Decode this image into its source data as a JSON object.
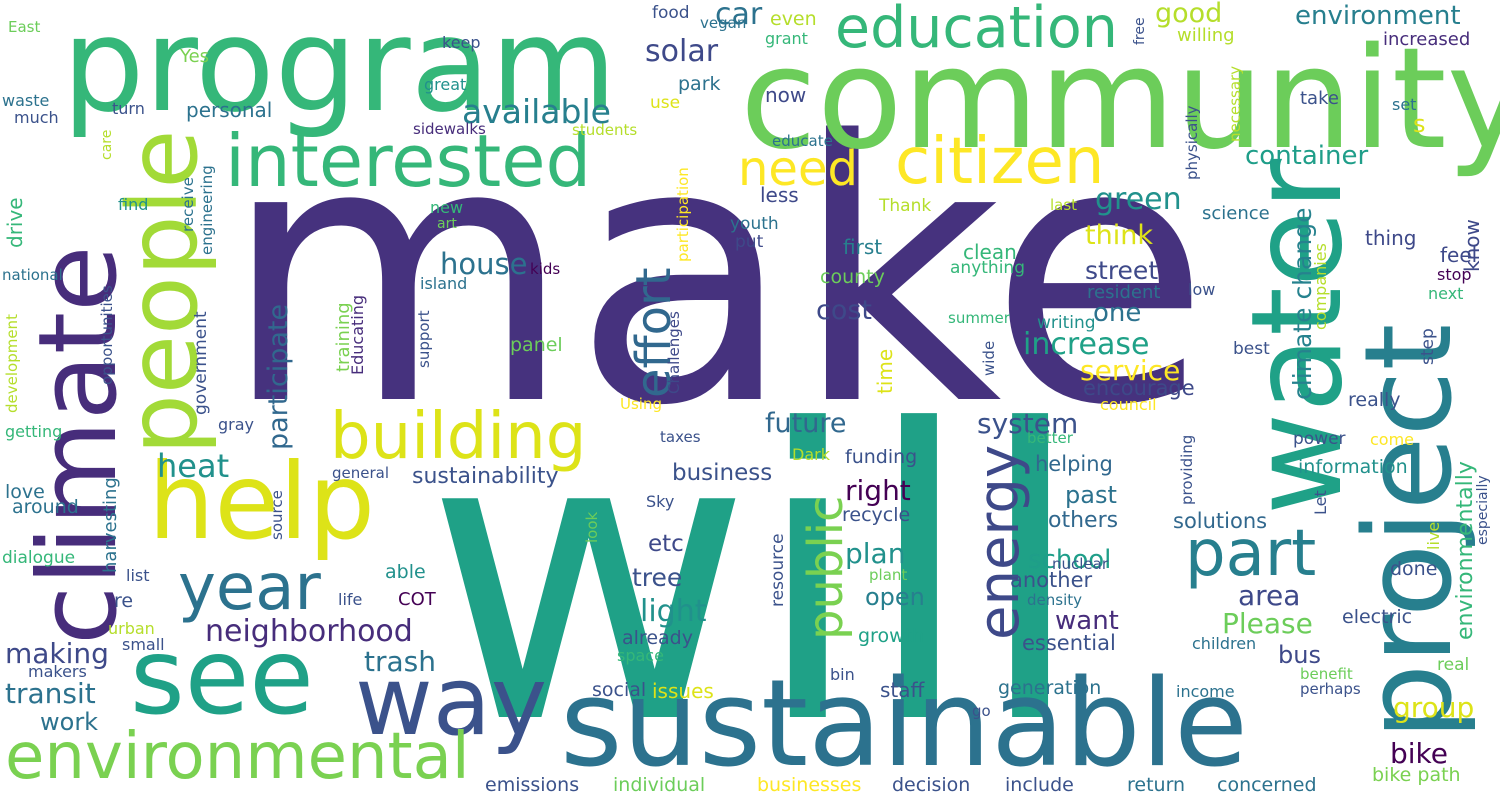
{
  "words": [
    {
      "text": "make",
      "color": "#46327e"
    },
    {
      "text": "will",
      "color": "#1fa187"
    },
    {
      "text": "community",
      "color": "#6ccd5a"
    },
    {
      "text": "program",
      "color": "#35b779"
    },
    {
      "text": "project",
      "color": "#277f8e"
    },
    {
      "text": "water",
      "color": "#1fa187"
    },
    {
      "text": "sustainable",
      "color": "#2c728e"
    },
    {
      "text": "climate",
      "color": "#472d7b"
    },
    {
      "text": "people",
      "color": "#a2da37"
    },
    {
      "text": "help",
      "color": "#dde318"
    },
    {
      "text": "see",
      "color": "#1fa187"
    },
    {
      "text": "way",
      "color": "#3b528b"
    },
    {
      "text": "environmental",
      "color": "#7ad151"
    },
    {
      "text": "interested",
      "color": "#35b779"
    },
    {
      "text": "education",
      "color": "#35b779"
    },
    {
      "text": "citizen",
      "color": "#fde725"
    },
    {
      "text": "building",
      "color": "#dde318"
    },
    {
      "text": "year",
      "color": "#2c728e"
    },
    {
      "text": "part",
      "color": "#277f8e"
    },
    {
      "text": "energy",
      "color": "#3e4989"
    },
    {
      "text": "public",
      "color": "#7ad151"
    },
    {
      "text": "effort",
      "color": "#31688e"
    },
    {
      "text": "need",
      "color": "#fde725"
    },
    {
      "text": "available",
      "color": "#277f8e"
    },
    {
      "text": "solar",
      "color": "#3e4989"
    },
    {
      "text": "car",
      "color": "#2c728e"
    },
    {
      "text": "good",
      "color": "#b5de2b"
    },
    {
      "text": "environment",
      "color": "#277f8e"
    },
    {
      "text": "container",
      "color": "#1f9e89"
    },
    {
      "text": "climate change",
      "color": "#26828e"
    },
    {
      "text": "green",
      "color": "#21918c"
    },
    {
      "text": "think",
      "color": "#dde318"
    },
    {
      "text": "street",
      "color": "#3e4989"
    },
    {
      "text": "one",
      "color": "#2c728e"
    },
    {
      "text": "increase",
      "color": "#1fa187"
    },
    {
      "text": "service",
      "color": "#fde725"
    },
    {
      "text": "encourage",
      "color": "#3e4989"
    },
    {
      "text": "house",
      "color": "#2c728e"
    },
    {
      "text": "heat",
      "color": "#21918c"
    },
    {
      "text": "cost",
      "color": "#3e4989"
    },
    {
      "text": "participate",
      "color": "#31688e"
    },
    {
      "text": "neighborhood",
      "color": "#472d7b"
    },
    {
      "text": "system",
      "color": "#3b528b"
    },
    {
      "text": "future",
      "color": "#31688e"
    },
    {
      "text": "business",
      "color": "#3b528b"
    },
    {
      "text": "sustainability",
      "color": "#3b528b"
    },
    {
      "text": "right",
      "color": "#440154"
    },
    {
      "text": "plan",
      "color": "#21918c"
    },
    {
      "text": "school",
      "color": "#1f9e89"
    },
    {
      "text": "tree",
      "color": "#3b528b"
    },
    {
      "text": "light",
      "color": "#21918c"
    },
    {
      "text": "open",
      "color": "#277f8e"
    },
    {
      "text": "want",
      "color": "#472d7b"
    },
    {
      "text": "area",
      "color": "#3e4989"
    },
    {
      "text": "Please",
      "color": "#6ccd5a"
    },
    {
      "text": "trash",
      "color": "#2c728e"
    },
    {
      "text": "making",
      "color": "#3e4989"
    },
    {
      "text": "transit",
      "color": "#2c728e"
    },
    {
      "text": "work",
      "color": "#2c728e"
    },
    {
      "text": "bike",
      "color": "#440154"
    },
    {
      "text": "group",
      "color": "#dde318"
    },
    {
      "text": "bus",
      "color": "#3e4989"
    },
    {
      "text": "etc",
      "color": "#3e4989"
    },
    {
      "text": "past",
      "color": "#2c728e"
    },
    {
      "text": "others",
      "color": "#31688e"
    },
    {
      "text": "helping",
      "color": "#31688e"
    },
    {
      "text": "solutions",
      "color": "#31688e"
    },
    {
      "text": "another",
      "color": "#3b528b"
    },
    {
      "text": "essential",
      "color": "#3b528b"
    },
    {
      "text": "now",
      "color": "#3e4989"
    },
    {
      "text": "know",
      "color": "#3e4989"
    },
    {
      "text": "feel",
      "color": "#3e4989"
    },
    {
      "text": "thing",
      "color": "#3e4989"
    },
    {
      "text": "less",
      "color": "#3e4989"
    },
    {
      "text": "first",
      "color": "#277f8e"
    },
    {
      "text": "county",
      "color": "#6ccd5a"
    },
    {
      "text": "panel",
      "color": "#6ccd5a"
    },
    {
      "text": "time",
      "color": "#dde318"
    },
    {
      "text": "clean",
      "color": "#35b779"
    },
    {
      "text": "anything",
      "color": "#35b779"
    },
    {
      "text": "resident",
      "color": "#2c728e"
    },
    {
      "text": "science",
      "color": "#2c728e"
    },
    {
      "text": "environmentally",
      "color": "#35b779"
    },
    {
      "text": "funding",
      "color": "#3b528b"
    },
    {
      "text": "recycle",
      "color": "#3b528b"
    },
    {
      "text": "growth",
      "color": "#1fa187"
    },
    {
      "text": "staff",
      "color": "#3b528b"
    },
    {
      "text": "generation",
      "color": "#2c728e"
    },
    {
      "text": "information",
      "color": "#21918c"
    },
    {
      "text": "issues",
      "color": "#dde318"
    },
    {
      "text": "social",
      "color": "#3b528b"
    },
    {
      "text": "already",
      "color": "#3b528b"
    },
    {
      "text": "electric",
      "color": "#3b528b"
    },
    {
      "text": "done",
      "color": "#3b528b"
    },
    {
      "text": "really",
      "color": "#3b528b"
    },
    {
      "text": "power",
      "color": "#3b528b"
    },
    {
      "text": "emissions",
      "color": "#3b528b"
    },
    {
      "text": "individual",
      "color": "#6ccd5a"
    },
    {
      "text": "businesses",
      "color": "#fde725"
    },
    {
      "text": "decision",
      "color": "#3b528b"
    },
    {
      "text": "include",
      "color": "#3b528b"
    },
    {
      "text": "return",
      "color": "#2c728e"
    },
    {
      "text": "concerned",
      "color": "#2c728e"
    },
    {
      "text": "bike path",
      "color": "#7ad151"
    },
    {
      "text": "personal",
      "color": "#2c728e"
    },
    {
      "text": "drive",
      "color": "#35b779"
    },
    {
      "text": "government",
      "color": "#3b528b"
    },
    {
      "text": "training",
      "color": "#7ad151"
    },
    {
      "text": "Educating",
      "color": "#472d7b"
    },
    {
      "text": "harvesting",
      "color": "#2c728e"
    },
    {
      "text": "dialogue",
      "color": "#35b779"
    },
    {
      "text": "love",
      "color": "#2c728e"
    },
    {
      "text": "around",
      "color": "#2c728e"
    },
    {
      "text": "getting",
      "color": "#35b779"
    },
    {
      "text": "development",
      "color": "#b5de2b"
    },
    {
      "text": "opportunities",
      "color": "#3b528b"
    },
    {
      "text": "national",
      "color": "#2c728e"
    },
    {
      "text": "engineering",
      "color": "#2c728e"
    },
    {
      "text": "receive",
      "color": "#2c728e"
    },
    {
      "text": "support",
      "color": "#3b528b"
    },
    {
      "text": "island",
      "color": "#2c728e"
    },
    {
      "text": "kids",
      "color": "#440154"
    },
    {
      "text": "Challenges",
      "color": "#3e4989"
    },
    {
      "text": "participation",
      "color": "#fde725"
    },
    {
      "text": "new",
      "color": "#35b779"
    },
    {
      "text": "art",
      "color": "#6ccd5a"
    },
    {
      "text": "Thank",
      "color": "#b5de2b"
    },
    {
      "text": "last",
      "color": "#b5de2b"
    },
    {
      "text": "youth",
      "color": "#2c728e"
    },
    {
      "text": "put",
      "color": "#3e4989"
    },
    {
      "text": "educate",
      "color": "#2c728e"
    },
    {
      "text": "students",
      "color": "#b5de2b"
    },
    {
      "text": "sidewalks",
      "color": "#472d7b"
    },
    {
      "text": "great",
      "color": "#21918c"
    },
    {
      "text": "keep",
      "color": "#3b528b"
    },
    {
      "text": "food",
      "color": "#3b528b"
    },
    {
      "text": "vegan",
      "color": "#2c728e"
    },
    {
      "text": "even",
      "color": "#b5de2b"
    },
    {
      "text": "grant",
      "color": "#35b779"
    },
    {
      "text": "park",
      "color": "#2c728e"
    },
    {
      "text": "use",
      "color": "#dde318"
    },
    {
      "text": "East",
      "color": "#6ccd5a"
    },
    {
      "text": "Yes",
      "color": "#7ad151"
    },
    {
      "text": "waste",
      "color": "#2c728e"
    },
    {
      "text": "much",
      "color": "#3b528b"
    },
    {
      "text": "turn",
      "color": "#3b528b"
    },
    {
      "text": "care",
      "color": "#b5de2b"
    },
    {
      "text": "find",
      "color": "#21918c"
    },
    {
      "text": "free",
      "color": "#3b528b"
    },
    {
      "text": "willing",
      "color": "#b5de2b"
    },
    {
      "text": "increased",
      "color": "#472d7b"
    },
    {
      "text": "take",
      "color": "#3b528b"
    },
    {
      "text": "set",
      "color": "#2c728e"
    },
    {
      "text": "s",
      "color": "#dde318"
    },
    {
      "text": "necessary",
      "color": "#b5de2b"
    },
    {
      "text": "physically",
      "color": "#3b528b"
    },
    {
      "text": "low",
      "color": "#3b528b"
    },
    {
      "text": "companies",
      "color": "#b5de2b"
    },
    {
      "text": "stop",
      "color": "#440154"
    },
    {
      "text": "next",
      "color": "#35b779"
    },
    {
      "text": "step",
      "color": "#3b528b"
    },
    {
      "text": "best",
      "color": "#3b528b"
    },
    {
      "text": "writing",
      "color": "#21918c"
    },
    {
      "text": "summer",
      "color": "#35b779"
    },
    {
      "text": "wide",
      "color": "#3b528b"
    },
    {
      "text": "council",
      "color": "#fde725"
    },
    {
      "text": "better",
      "color": "#35b779"
    },
    {
      "text": "providing",
      "color": "#3b528b"
    },
    {
      "text": "Let",
      "color": "#3b528b"
    },
    {
      "text": "live",
      "color": "#b5de2b"
    },
    {
      "text": "especially",
      "color": "#3b528b"
    },
    {
      "text": "come",
      "color": "#fde725"
    },
    {
      "text": "nuclear",
      "color": "#3b528b"
    },
    {
      "text": "density",
      "color": "#2c728e"
    },
    {
      "text": "children",
      "color": "#2c728e"
    },
    {
      "text": "income",
      "color": "#2c728e"
    },
    {
      "text": "benefit",
      "color": "#6ccd5a"
    },
    {
      "text": "perhaps",
      "color": "#3b528b"
    },
    {
      "text": "real",
      "color": "#6ccd5a"
    },
    {
      "text": "go",
      "color": "#3b528b"
    },
    {
      "text": "bin",
      "color": "#3b528b"
    },
    {
      "text": "space",
      "color": "#35b779"
    },
    {
      "text": "small",
      "color": "#3b528b"
    },
    {
      "text": "makers",
      "color": "#3b528b"
    },
    {
      "text": "urban",
      "color": "#b5de2b"
    },
    {
      "text": "re",
      "color": "#3b528b"
    },
    {
      "text": "list",
      "color": "#3b528b"
    },
    {
      "text": "able",
      "color": "#21918c"
    },
    {
      "text": "life",
      "color": "#3b528b"
    },
    {
      "text": "COT",
      "color": "#440154"
    },
    {
      "text": "plant",
      "color": "#6ccd5a"
    },
    {
      "text": "source",
      "color": "#3b528b"
    },
    {
      "text": "look",
      "color": "#6ccd5a"
    },
    {
      "text": "Sky",
      "color": "#3b528b"
    },
    {
      "text": "Dark",
      "color": "#b5de2b"
    },
    {
      "text": "general",
      "color": "#3b528b"
    },
    {
      "text": "taxes",
      "color": "#3b528b"
    },
    {
      "text": "gray",
      "color": "#3b528b"
    },
    {
      "text": "Using",
      "color": "#fde725"
    },
    {
      "text": "resource",
      "color": "#3b528b"
    }
  ]
}
